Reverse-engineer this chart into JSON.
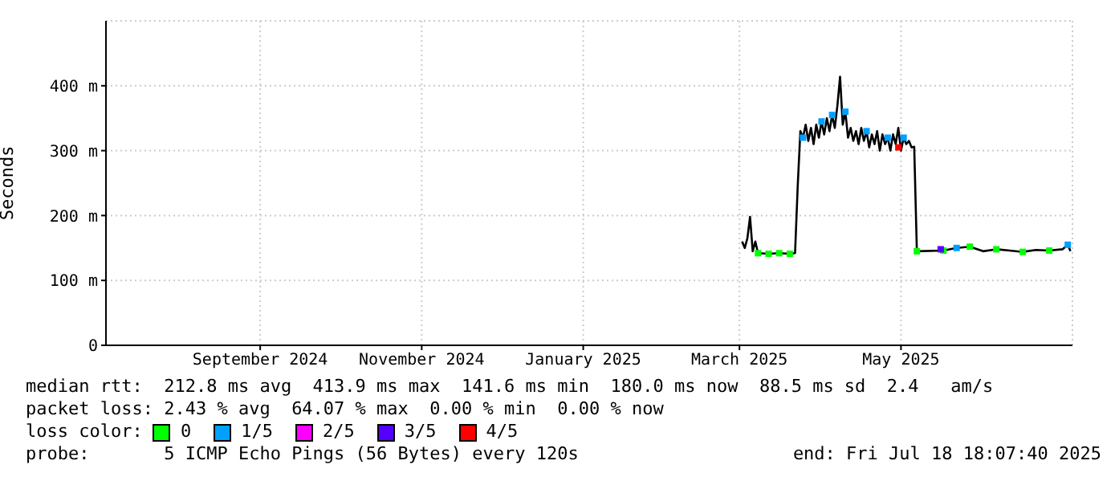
{
  "chart_data": {
    "type": "line",
    "ylabel": "Seconds",
    "xlim": [
      "2024-07-18T18:07",
      "2025-07-18T18:07"
    ],
    "xticks": [
      {
        "value": "2024-09-15",
        "label": "September 2024"
      },
      {
        "value": "2024-11-15",
        "label": "November 2024"
      },
      {
        "value": "2025-01-15",
        "label": "January 2025"
      },
      {
        "value": "2025-03-15",
        "label": "March 2025"
      },
      {
        "value": "2025-05-15",
        "label": "May 2025"
      }
    ],
    "ylim": [
      0,
      500
    ],
    "yticks": [
      0,
      {
        "value": 100,
        "label": "100 m"
      },
      {
        "value": 200,
        "label": "200 m"
      },
      {
        "value": 300,
        "label": "300 m"
      },
      {
        "value": 400,
        "label": "400 m"
      }
    ],
    "grid": true,
    "legend": "bottom",
    "legend_title": "loss color:",
    "marker": "none",
    "line_style": "solid",
    "series": [
      {
        "color": "#000000",
        "x": [
          "2025-03-16",
          "2025-03-17",
          "2025-03-18",
          "2025-03-19",
          "2025-03-20",
          "2025-03-21",
          "2025-03-22",
          "2025-03-26",
          "2025-03-30",
          "2025-04-03",
          "2025-04-05",
          "2025-04-06",
          "2025-04-07",
          "2025-04-08",
          "2025-04-09",
          "2025-04-10",
          "2025-04-11",
          "2025-04-12",
          "2025-04-13",
          "2025-04-14",
          "2025-04-15",
          "2025-04-16",
          "2025-04-17",
          "2025-04-18",
          "2025-04-19",
          "2025-04-20",
          "2025-04-21",
          "2025-04-22",
          "2025-04-23",
          "2025-04-24",
          "2025-04-25",
          "2025-04-26",
          "2025-04-27",
          "2025-04-28",
          "2025-04-29",
          "2025-04-30",
          "2025-05-01",
          "2025-05-02",
          "2025-05-03",
          "2025-05-04",
          "2025-05-05",
          "2025-05-06",
          "2025-05-07",
          "2025-05-08",
          "2025-05-09",
          "2025-05-10",
          "2025-05-11",
          "2025-05-12",
          "2025-05-13",
          "2025-05-14",
          "2025-05-15",
          "2025-05-16",
          "2025-05-17",
          "2025-05-18",
          "2025-05-19",
          "2025-05-20",
          "2025-05-21",
          "2025-05-31",
          "2025-06-05",
          "2025-06-10",
          "2025-06-15",
          "2025-06-20",
          "2025-06-25",
          "2025-06-30",
          "2025-07-05",
          "2025-07-10",
          "2025-07-15",
          "2025-07-17",
          "2025-07-18"
        ],
        "values": [
          160,
          150,
          165,
          198,
          145,
          160,
          142,
          141,
          142,
          141,
          142,
          245,
          330,
          320,
          340,
          315,
          335,
          310,
          340,
          320,
          345,
          325,
          350,
          330,
          355,
          335,
          370,
          414,
          340,
          360,
          320,
          335,
          315,
          330,
          310,
          335,
          315,
          330,
          305,
          325,
          310,
          330,
          300,
          325,
          310,
          320,
          300,
          325,
          310,
          335,
          300,
          320,
          310,
          315,
          305,
          306,
          145,
          146,
          150,
          152,
          145,
          148,
          146,
          144,
          147,
          146,
          148,
          155,
          145
        ]
      },
      {
        "type": "scatter",
        "name": "0",
        "color": "#00ff00",
        "marker": "square",
        "x": [
          "2025-03-22",
          "2025-03-26",
          "2025-03-30",
          "2025-04-03",
          "2025-05-21",
          "2025-05-31",
          "2025-06-10",
          "2025-06-20",
          "2025-06-30",
          "2025-07-10"
        ],
        "values": [
          142,
          141,
          142,
          141,
          145,
          146,
          152,
          148,
          144,
          146
        ]
      },
      {
        "type": "scatter",
        "name": "1/5",
        "color": "#00a0ff",
        "marker": "square",
        "x": [
          "2025-04-08",
          "2025-04-15",
          "2025-04-19",
          "2025-04-24",
          "2025-05-02",
          "2025-05-10",
          "2025-05-16",
          "2025-06-05",
          "2025-07-17"
        ],
        "values": [
          320,
          345,
          355,
          360,
          330,
          320,
          320,
          150,
          155
        ]
      },
      {
        "type": "scatter",
        "name": "2/5",
        "color": "#ff00ff",
        "marker": "square"
      },
      {
        "type": "scatter",
        "name": "3/5",
        "color": "#5500ff",
        "marker": "square",
        "x": [
          "2025-05-30"
        ],
        "values": [
          148
        ]
      },
      {
        "type": "scatter",
        "name": "4/5",
        "color": "#ff0000",
        "marker": "square",
        "x": [
          "2025-05-14"
        ],
        "values": [
          305
        ]
      }
    ],
    "annotations": [
      "median rtt:  212.8 ms avg  413.9 ms max  141.6 ms min  180.0 ms now  88.5 ms sd  2.4   am/s",
      "packet loss: 2.43 % avg  64.07 % max  0.00 % min  0.00 % now",
      "probe:       5 ICMP Echo Pings (56 Bytes) every 120s",
      "end: Fri Jul 18 18:07:40 2025"
    ]
  }
}
